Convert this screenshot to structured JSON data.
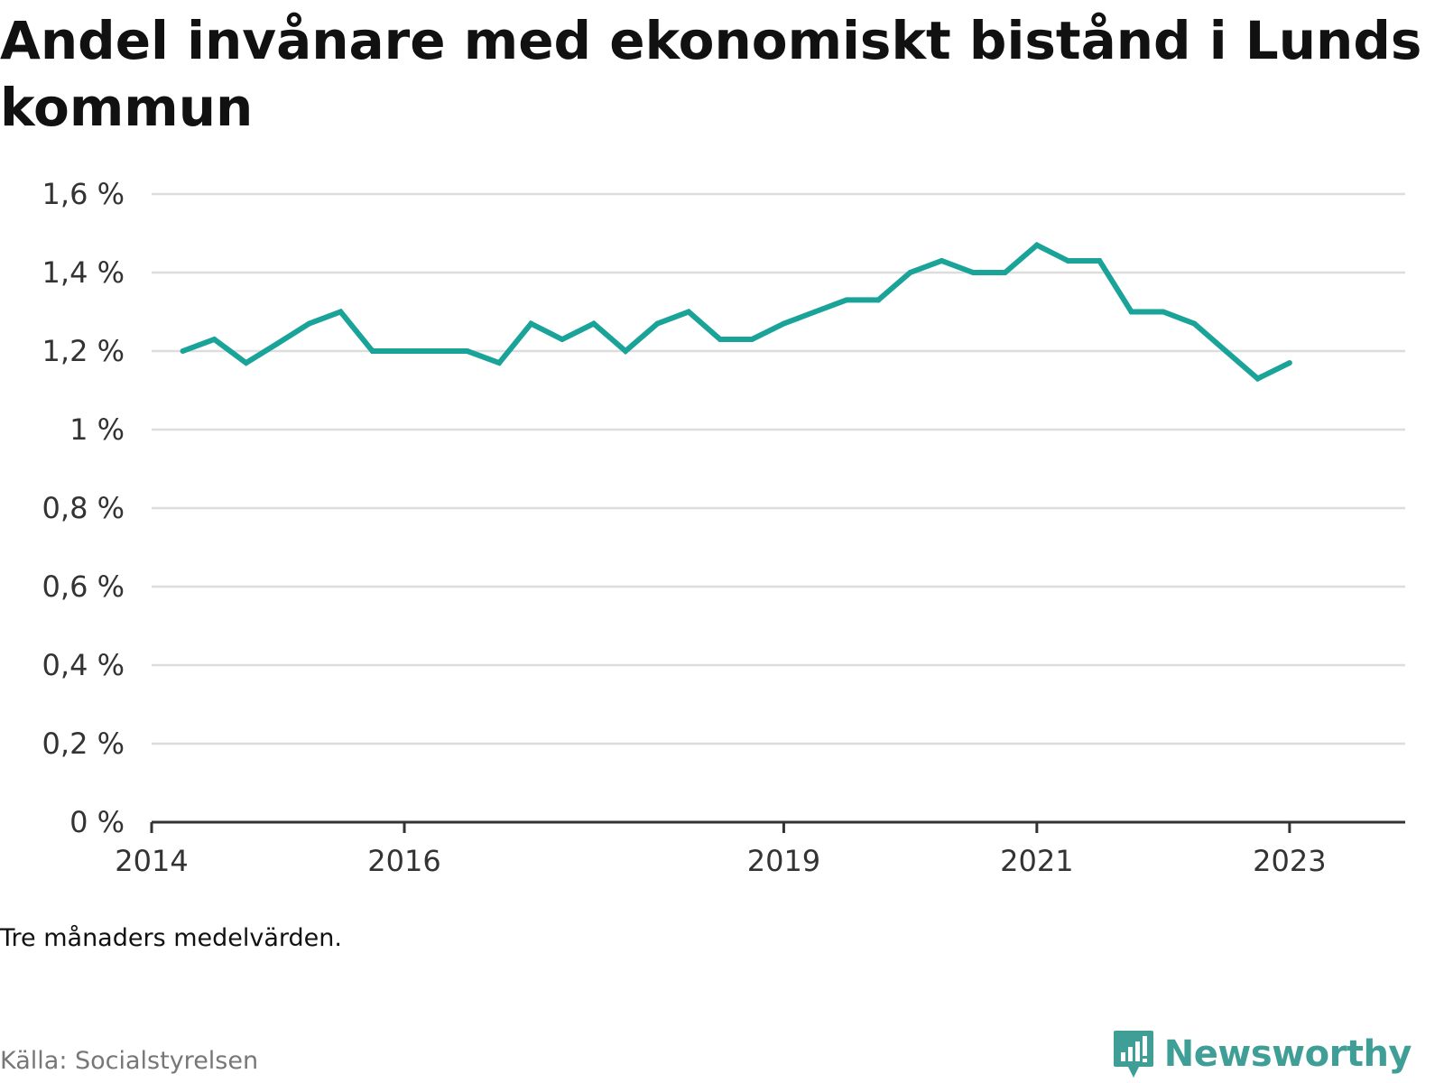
{
  "title": "Andel invånare med ekonomiskt bistånd i Lunds kommun",
  "note": "Tre månaders medelvärden.",
  "source": "Källa: Socialstyrelsen",
  "brand": {
    "name": "Newsworthy",
    "logo_icon": "newsworthy-bar-chart-icon",
    "color": "#3f9e96"
  },
  "colors": {
    "line": "#1aa399",
    "grid": "#dddddd",
    "axis": "#333333"
  },
  "chart_data": {
    "type": "line",
    "title": "Andel invånare med ekonomiskt bistånd i Lunds kommun",
    "xlabel": "",
    "ylabel": "",
    "y_unit": "%",
    "ylim": [
      0,
      1.6
    ],
    "y_ticks": [
      {
        "value": 0,
        "label": "0 %"
      },
      {
        "value": 0.2,
        "label": "0,2 %"
      },
      {
        "value": 0.4,
        "label": "0,4 %"
      },
      {
        "value": 0.6,
        "label": "0,6 %"
      },
      {
        "value": 0.8,
        "label": "0,8 %"
      },
      {
        "value": 1.0,
        "label": "1 %"
      },
      {
        "value": 1.2,
        "label": "1,2 %"
      },
      {
        "value": 1.4,
        "label": "1,4 %"
      },
      {
        "value": 1.6,
        "label": "1,6 %"
      }
    ],
    "x_range": [
      "2014-01-01",
      "2023-12-01"
    ],
    "x_ticks": [
      {
        "date": "2014-01-01",
        "label": "2014"
      },
      {
        "date": "2016-01-01",
        "label": "2016"
      },
      {
        "date": "2019-01-01",
        "label": "2019"
      },
      {
        "date": "2021-01-01",
        "label": "2021"
      },
      {
        "date": "2023-01-01",
        "label": "2023"
      }
    ],
    "grid": true,
    "legend": "none",
    "series": [
      {
        "x": [
          "2014-04-01",
          "2014-07-01",
          "2014-10-01",
          "2015-01-01",
          "2015-04-01",
          "2015-07-01",
          "2015-10-01",
          "2016-01-01",
          "2016-04-01",
          "2016-07-01",
          "2016-10-01",
          "2017-01-01",
          "2017-04-01",
          "2017-07-01",
          "2017-10-01",
          "2018-01-01",
          "2018-04-01",
          "2018-07-01",
          "2018-10-01",
          "2019-01-01",
          "2019-04-01",
          "2019-07-01",
          "2019-10-01",
          "2020-01-01",
          "2020-04-01",
          "2020-07-01",
          "2020-10-01",
          "2021-01-01",
          "2021-04-01",
          "2021-07-01",
          "2021-10-01",
          "2022-01-01",
          "2022-04-01",
          "2022-07-01",
          "2022-10-01",
          "2023-01-01"
        ],
        "values": [
          1.2,
          1.23,
          1.17,
          1.22,
          1.27,
          1.3,
          1.2,
          1.2,
          1.2,
          1.2,
          1.17,
          1.27,
          1.23,
          1.27,
          1.2,
          1.27,
          1.3,
          1.23,
          1.23,
          1.27,
          1.3,
          1.33,
          1.33,
          1.4,
          1.43,
          1.4,
          1.4,
          1.47,
          1.43,
          1.43,
          1.3,
          1.3,
          1.27,
          1.2,
          1.13,
          1.17
        ]
      }
    ]
  }
}
